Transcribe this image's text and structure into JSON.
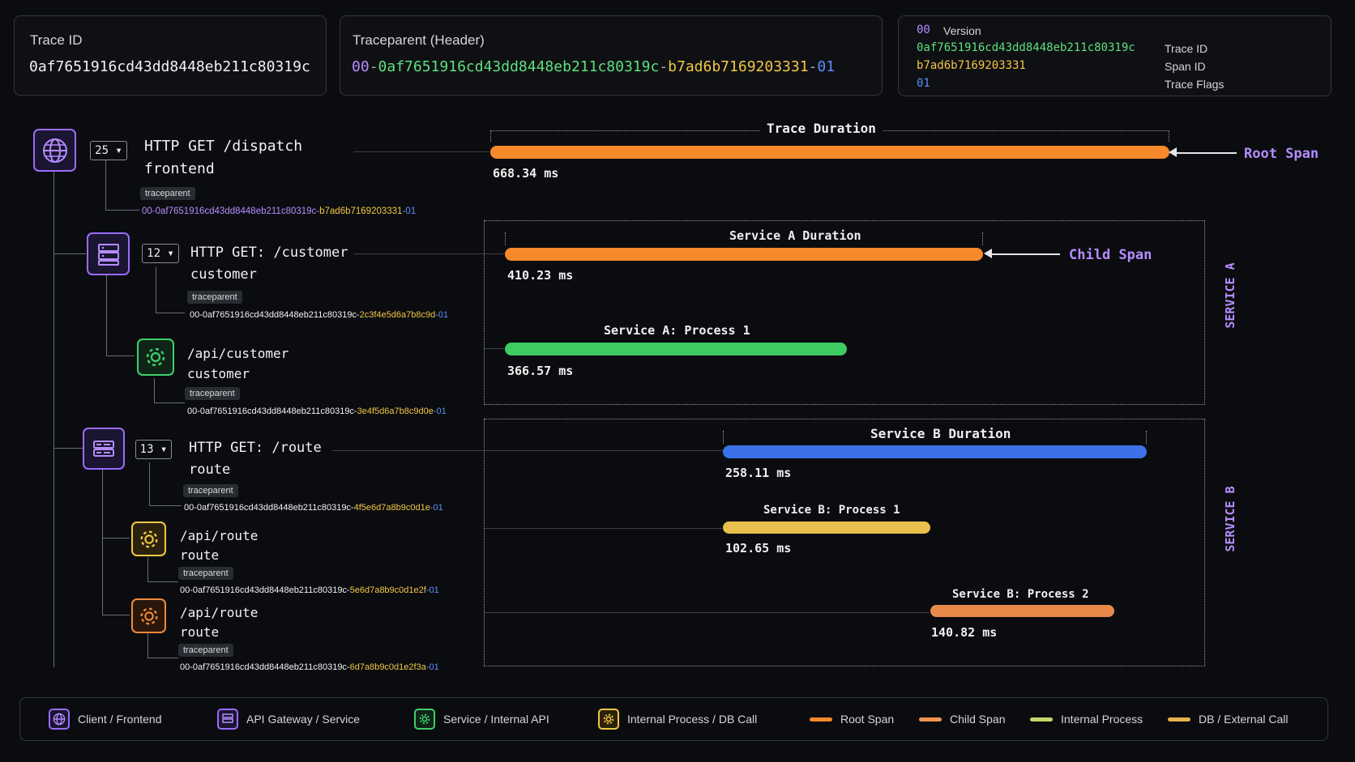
{
  "header": {
    "trace_id": {
      "label": "Trace ID",
      "value": "0af7651916cd43dd8448eb211c80319c"
    },
    "traceparent": {
      "label": "Traceparent (Header)",
      "version": "00",
      "trace_id": "0af7651916cd43dd8448eb211c80319c",
      "span_id": "b7ad6b7169203331",
      "flags": "01",
      "sep": "-"
    },
    "breakdown": [
      {
        "value": "00",
        "desc": "Version"
      },
      {
        "value": "0af7651916cd43dd8448eb211c80319c",
        "desc": "Trace ID"
      },
      {
        "value": "b7ad6b7169203331",
        "desc": "Span ID"
      },
      {
        "value": "01",
        "desc": "Trace Flags"
      }
    ]
  },
  "tag_label": "traceparent",
  "tp_prefix": "00-0af7651916cd43dd8448eb211c80319c-",
  "tp_suffix": "-01",
  "spans": [
    {
      "count": "25 ▾",
      "title": "HTTP GET /dispatch",
      "service": "frontend",
      "span_id": "b7ad6b7169203331"
    },
    {
      "count": "12 ▾",
      "title": "HTTP GET: /customer",
      "service": "customer",
      "span_id": "2c3f4e5d6a7b8c9d"
    },
    {
      "title": "/api/customer",
      "service": "customer",
      "span_id": "3e4f5d6a7b8c9d0e"
    },
    {
      "count": "13 ▾",
      "title": "HTTP GET: /route",
      "service": "route",
      "span_id": "4f5e6d7a8b9c0d1e"
    },
    {
      "title": "/api/route",
      "service": "route",
      "span_id": "5e6d7a8b9c0d1e2f"
    },
    {
      "title": "/api/route",
      "service": "route",
      "span_id": "6d7a8b9c0d1e2f3a"
    }
  ],
  "timeline": {
    "trace": {
      "label": "Trace Duration",
      "duration": "668.34 ms",
      "annotation": "Root Span",
      "color": "#f5892b"
    },
    "service_a": {
      "section": "SERVICE A",
      "label": "Service A Duration",
      "duration": "410.23 ms",
      "annotation": "Child Span",
      "color": "#f5892b"
    },
    "a_proc1": {
      "label": "Service A: Process 1",
      "duration": "366.57 ms",
      "color": "#3dcb62"
    },
    "service_b": {
      "section": "SERVICE B",
      "label": "Service B Duration",
      "duration": "258.11 ms",
      "color": "#3b72e8"
    },
    "b_proc1": {
      "label": "Service B: Process 1",
      "duration": "102.65 ms",
      "color": "#e9c04d"
    },
    "b_proc2": {
      "label": "Service B: Process 2",
      "duration": "140.82 ms",
      "color": "#e8894a"
    }
  },
  "legend": {
    "client": "Client / Frontend",
    "gateway": "API Gateway / Service",
    "service": "Service / Internal API",
    "internal": "Internal Process / DB Call",
    "root_span": "Root Span",
    "child_span": "Child Span",
    "internal_process": "Internal Process",
    "db_call": "DB / External Call",
    "colors": {
      "root": "#f5892b",
      "child": "#f0944e",
      "internal": "#c6d66a",
      "db": "#e7b24c"
    }
  }
}
